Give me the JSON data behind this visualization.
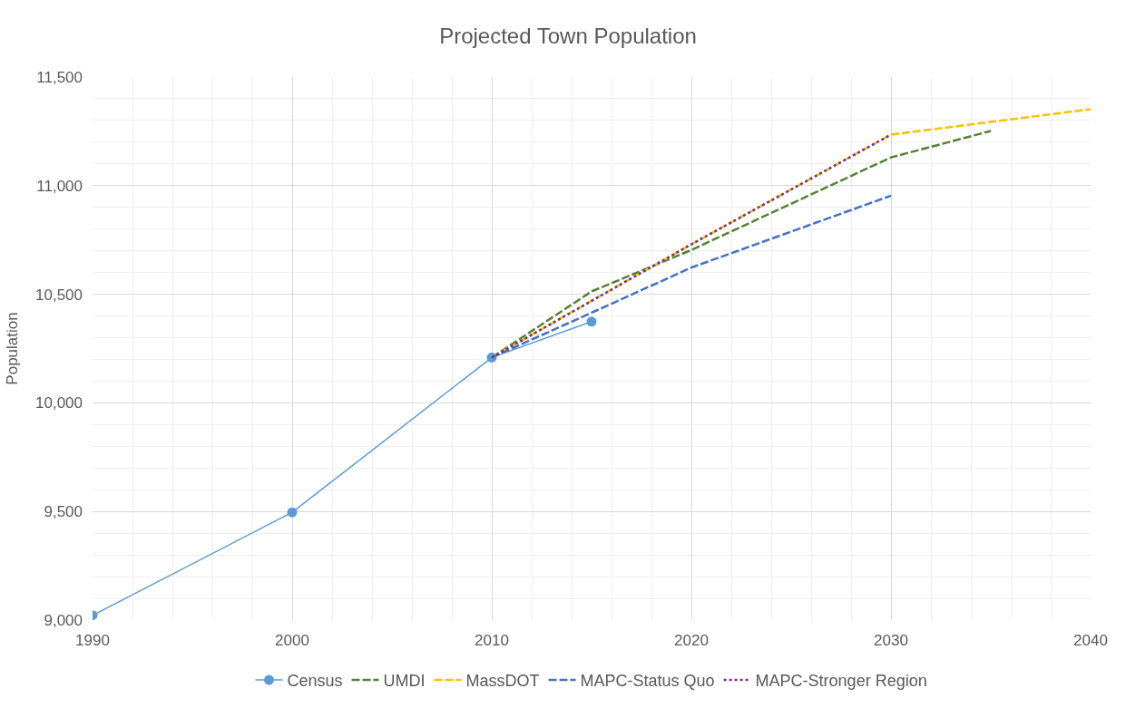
{
  "chart_data": {
    "type": "line",
    "title": "Projected Town Population",
    "ylabel": "Population",
    "xlim": [
      1990,
      2040
    ],
    "xticks": [
      1990,
      2000,
      2010,
      2020,
      2030,
      2040
    ],
    "ylim": [
      9000,
      11500
    ],
    "yticks": [
      {
        "value": 9000,
        "label": "9,000"
      },
      {
        "value": 9500,
        "label": "9,500"
      },
      {
        "value": 10000,
        "label": "10,000"
      },
      {
        "value": 10500,
        "label": "10,500"
      },
      {
        "value": 11000,
        "label": "11,000"
      },
      {
        "value": 11500,
        "label": "11,500"
      }
    ],
    "grid": true,
    "legend": "bottom",
    "series": [
      {
        "name": "Census",
        "color": "#5b9bd5",
        "x": [
          1990,
          2000,
          2010,
          2015
        ],
        "values": [
          9022,
          9496,
          10209,
          10374
        ],
        "marker": "circle",
        "line_style": "solid"
      },
      {
        "name": "UMDI",
        "color": "#548235",
        "x": [
          2010,
          2015,
          2020,
          2030,
          2035
        ],
        "values": [
          10209,
          10513,
          10704,
          11130,
          11252
        ],
        "marker": "none",
        "line_style": "dashed"
      },
      {
        "name": "MassDOT",
        "color": "#ffc000",
        "x": [
          2010,
          2020,
          2030,
          2040
        ],
        "values": [
          10209,
          10730,
          11235,
          11352
        ],
        "marker": "none",
        "line_style": "dashed"
      },
      {
        "name": "MAPC-Status Quo",
        "color": "#4472c4",
        "x": [
          2010,
          2015,
          2020,
          2030
        ],
        "values": [
          10209,
          10415,
          10623,
          10954
        ],
        "marker": "none",
        "line_style": "dashed"
      },
      {
        "name": "MAPC-Stronger Region",
        "color": "#7030a0",
        "x": [
          2010,
          2020,
          2030
        ],
        "values": [
          10209,
          10730,
          11235
        ],
        "marker": "none",
        "line_style": "dotted"
      }
    ]
  }
}
